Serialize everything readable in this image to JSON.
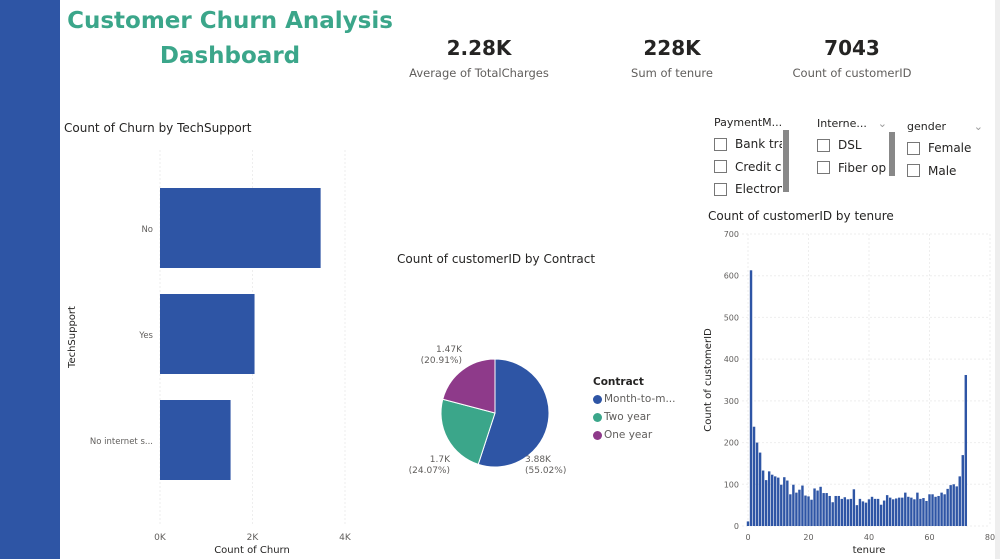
{
  "title": "Customer Churn Analysis Dashboard",
  "kpis": [
    {
      "value": "2.28K",
      "label": "Average of TotalCharges"
    },
    {
      "value": "228K",
      "label": "Sum of tenure"
    },
    {
      "value": "7043",
      "label": "Count of customerID"
    }
  ],
  "slicers": [
    {
      "header": "PaymentM...",
      "items": [
        "Bank tra...",
        "Credit c...",
        "Electron..."
      ]
    },
    {
      "header": "Interne...",
      "items": [
        "DSL",
        "Fiber op..."
      ]
    },
    {
      "header": "gender",
      "items": [
        "Female",
        "Male"
      ]
    }
  ],
  "colors": {
    "sidebar": "#2E55A5",
    "title": "#3BA68A",
    "bar": "#2E55A5"
  },
  "chart_data": [
    {
      "type": "bar",
      "orientation": "horizontal",
      "title": "Count of Churn by TechSupport",
      "xlabel": "Count of Churn",
      "ylabel": "TechSupport",
      "categories": [
        "No",
        "Yes",
        "No internet s..."
      ],
      "values": [
        3473,
        2044,
        1526
      ],
      "xlim": [
        0,
        4000
      ],
      "xticks": [
        "0K",
        "2K",
        "4K"
      ],
      "grid": true
    },
    {
      "type": "pie",
      "title": "Count of customerID by Contract",
      "legend_title": "Contract",
      "legend": "right",
      "slices": [
        {
          "name": "Month-to-m...",
          "value": 3875,
          "label": "3.88K",
          "pct": "(55.02%)",
          "color": "#2E55A5"
        },
        {
          "name": "Two year",
          "value": 1695,
          "label": "1.7K",
          "pct": "(24.07%)",
          "color": "#3BA68A"
        },
        {
          "name": "One year",
          "value": 1473,
          "label": "1.47K",
          "pct": "(20.91%)",
          "color": "#8E3A8A"
        }
      ]
    },
    {
      "type": "bar",
      "title": "Count of customerID by tenure",
      "xlabel": "tenure",
      "ylabel": "Count of customerID",
      "xlim": [
        0,
        80
      ],
      "ylim": [
        0,
        700
      ],
      "xticks": [
        "0",
        "20",
        "40",
        "60",
        "80"
      ],
      "yticks": [
        "0",
        "100",
        "200",
        "300",
        "400",
        "500",
        "600",
        "700"
      ],
      "grid": true,
      "x_start": 0,
      "values": [
        11,
        613,
        238,
        200,
        176,
        133,
        110,
        131,
        123,
        119,
        116,
        99,
        117,
        109,
        76,
        99,
        80,
        87,
        97,
        73,
        71,
        63,
        90,
        85,
        94,
        79,
        79,
        72,
        57,
        72,
        72,
        65,
        69,
        64,
        65,
        88,
        50,
        65,
        59,
        56,
        64,
        70,
        65,
        65,
        51,
        61,
        74,
        68,
        64,
        66,
        68,
        68,
        80,
        70,
        68,
        64,
        80,
        65,
        67,
        60,
        76,
        76,
        70,
        72,
        80,
        76,
        89,
        98,
        100,
        95,
        119,
        170,
        362
      ]
    }
  ]
}
